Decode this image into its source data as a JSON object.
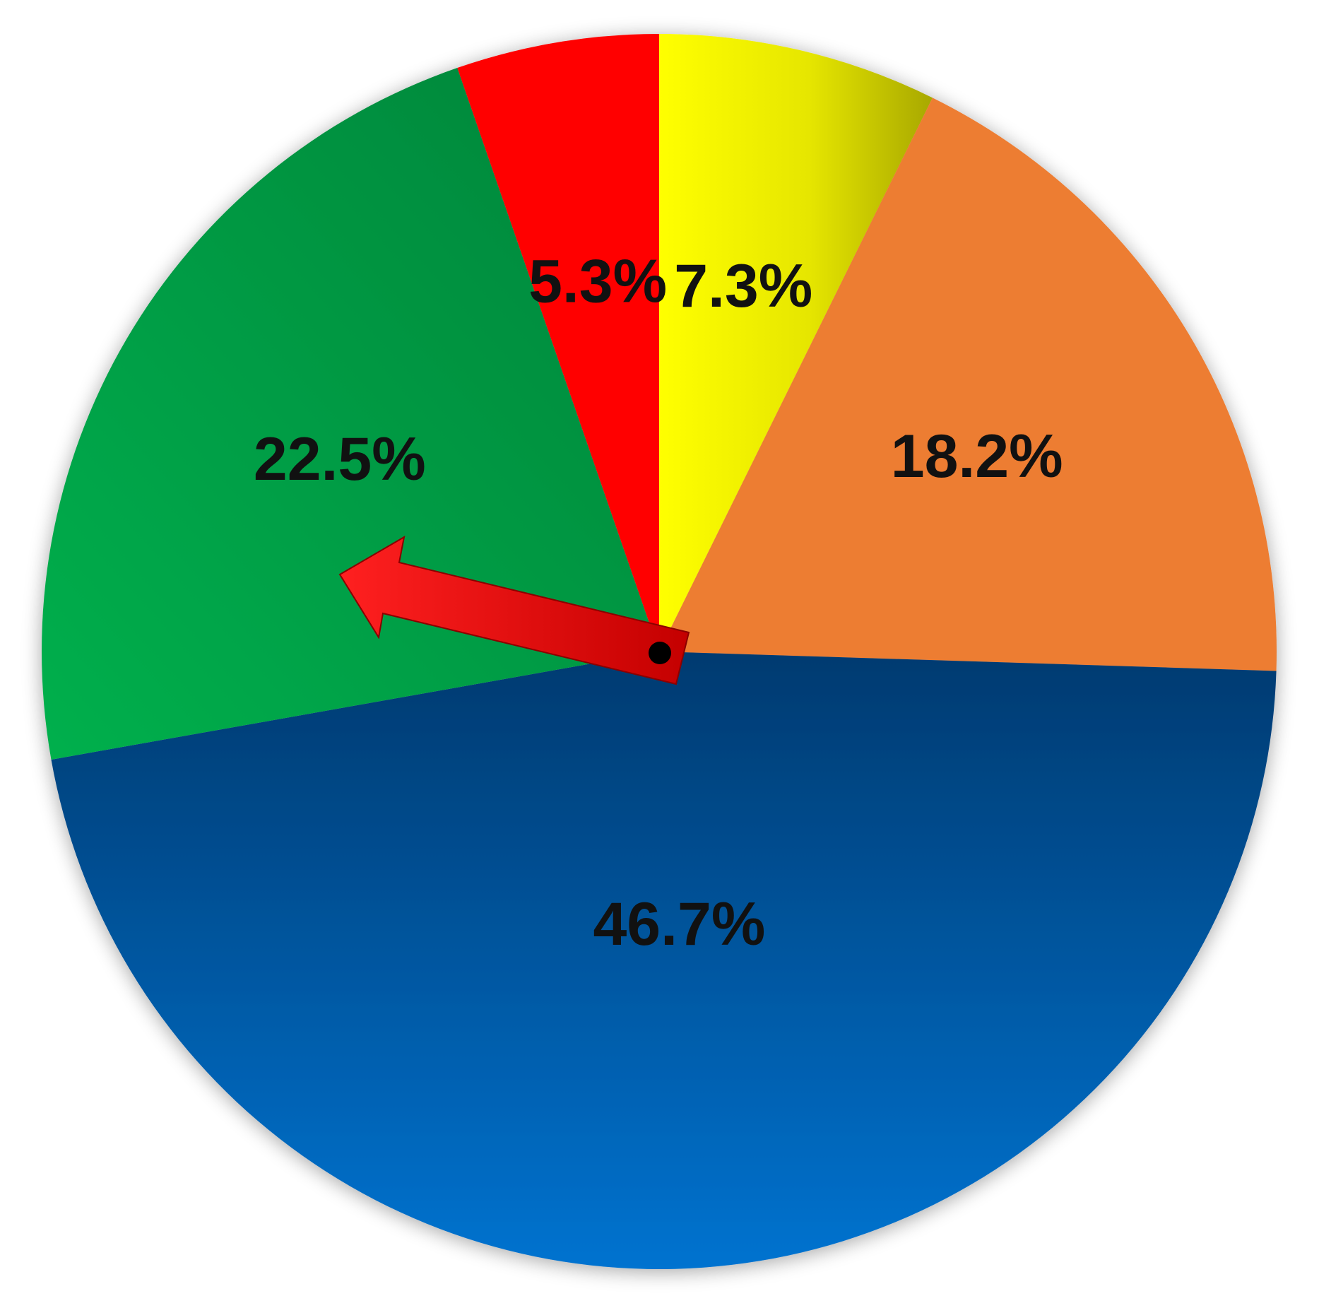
{
  "chart_data": {
    "type": "pie",
    "title": "",
    "start_angle_deg": 0,
    "direction": "clockwise",
    "slices": [
      {
        "label": "7.3%",
        "value": 7.3,
        "color": "#F5F500"
      },
      {
        "label": "18.2%",
        "value": 18.2,
        "color": "#ED7D31"
      },
      {
        "label": "46.7%",
        "value": 46.7,
        "color": "#005EAE"
      },
      {
        "label": "22.5%",
        "value": 22.5,
        "color": "#00A443"
      },
      {
        "label": "5.3%",
        "value": 5.3,
        "color": "#FF0000"
      }
    ],
    "legend": "none",
    "pointer": {
      "type": "arrow",
      "color": "#D40000",
      "points_to": "22.5%"
    }
  }
}
